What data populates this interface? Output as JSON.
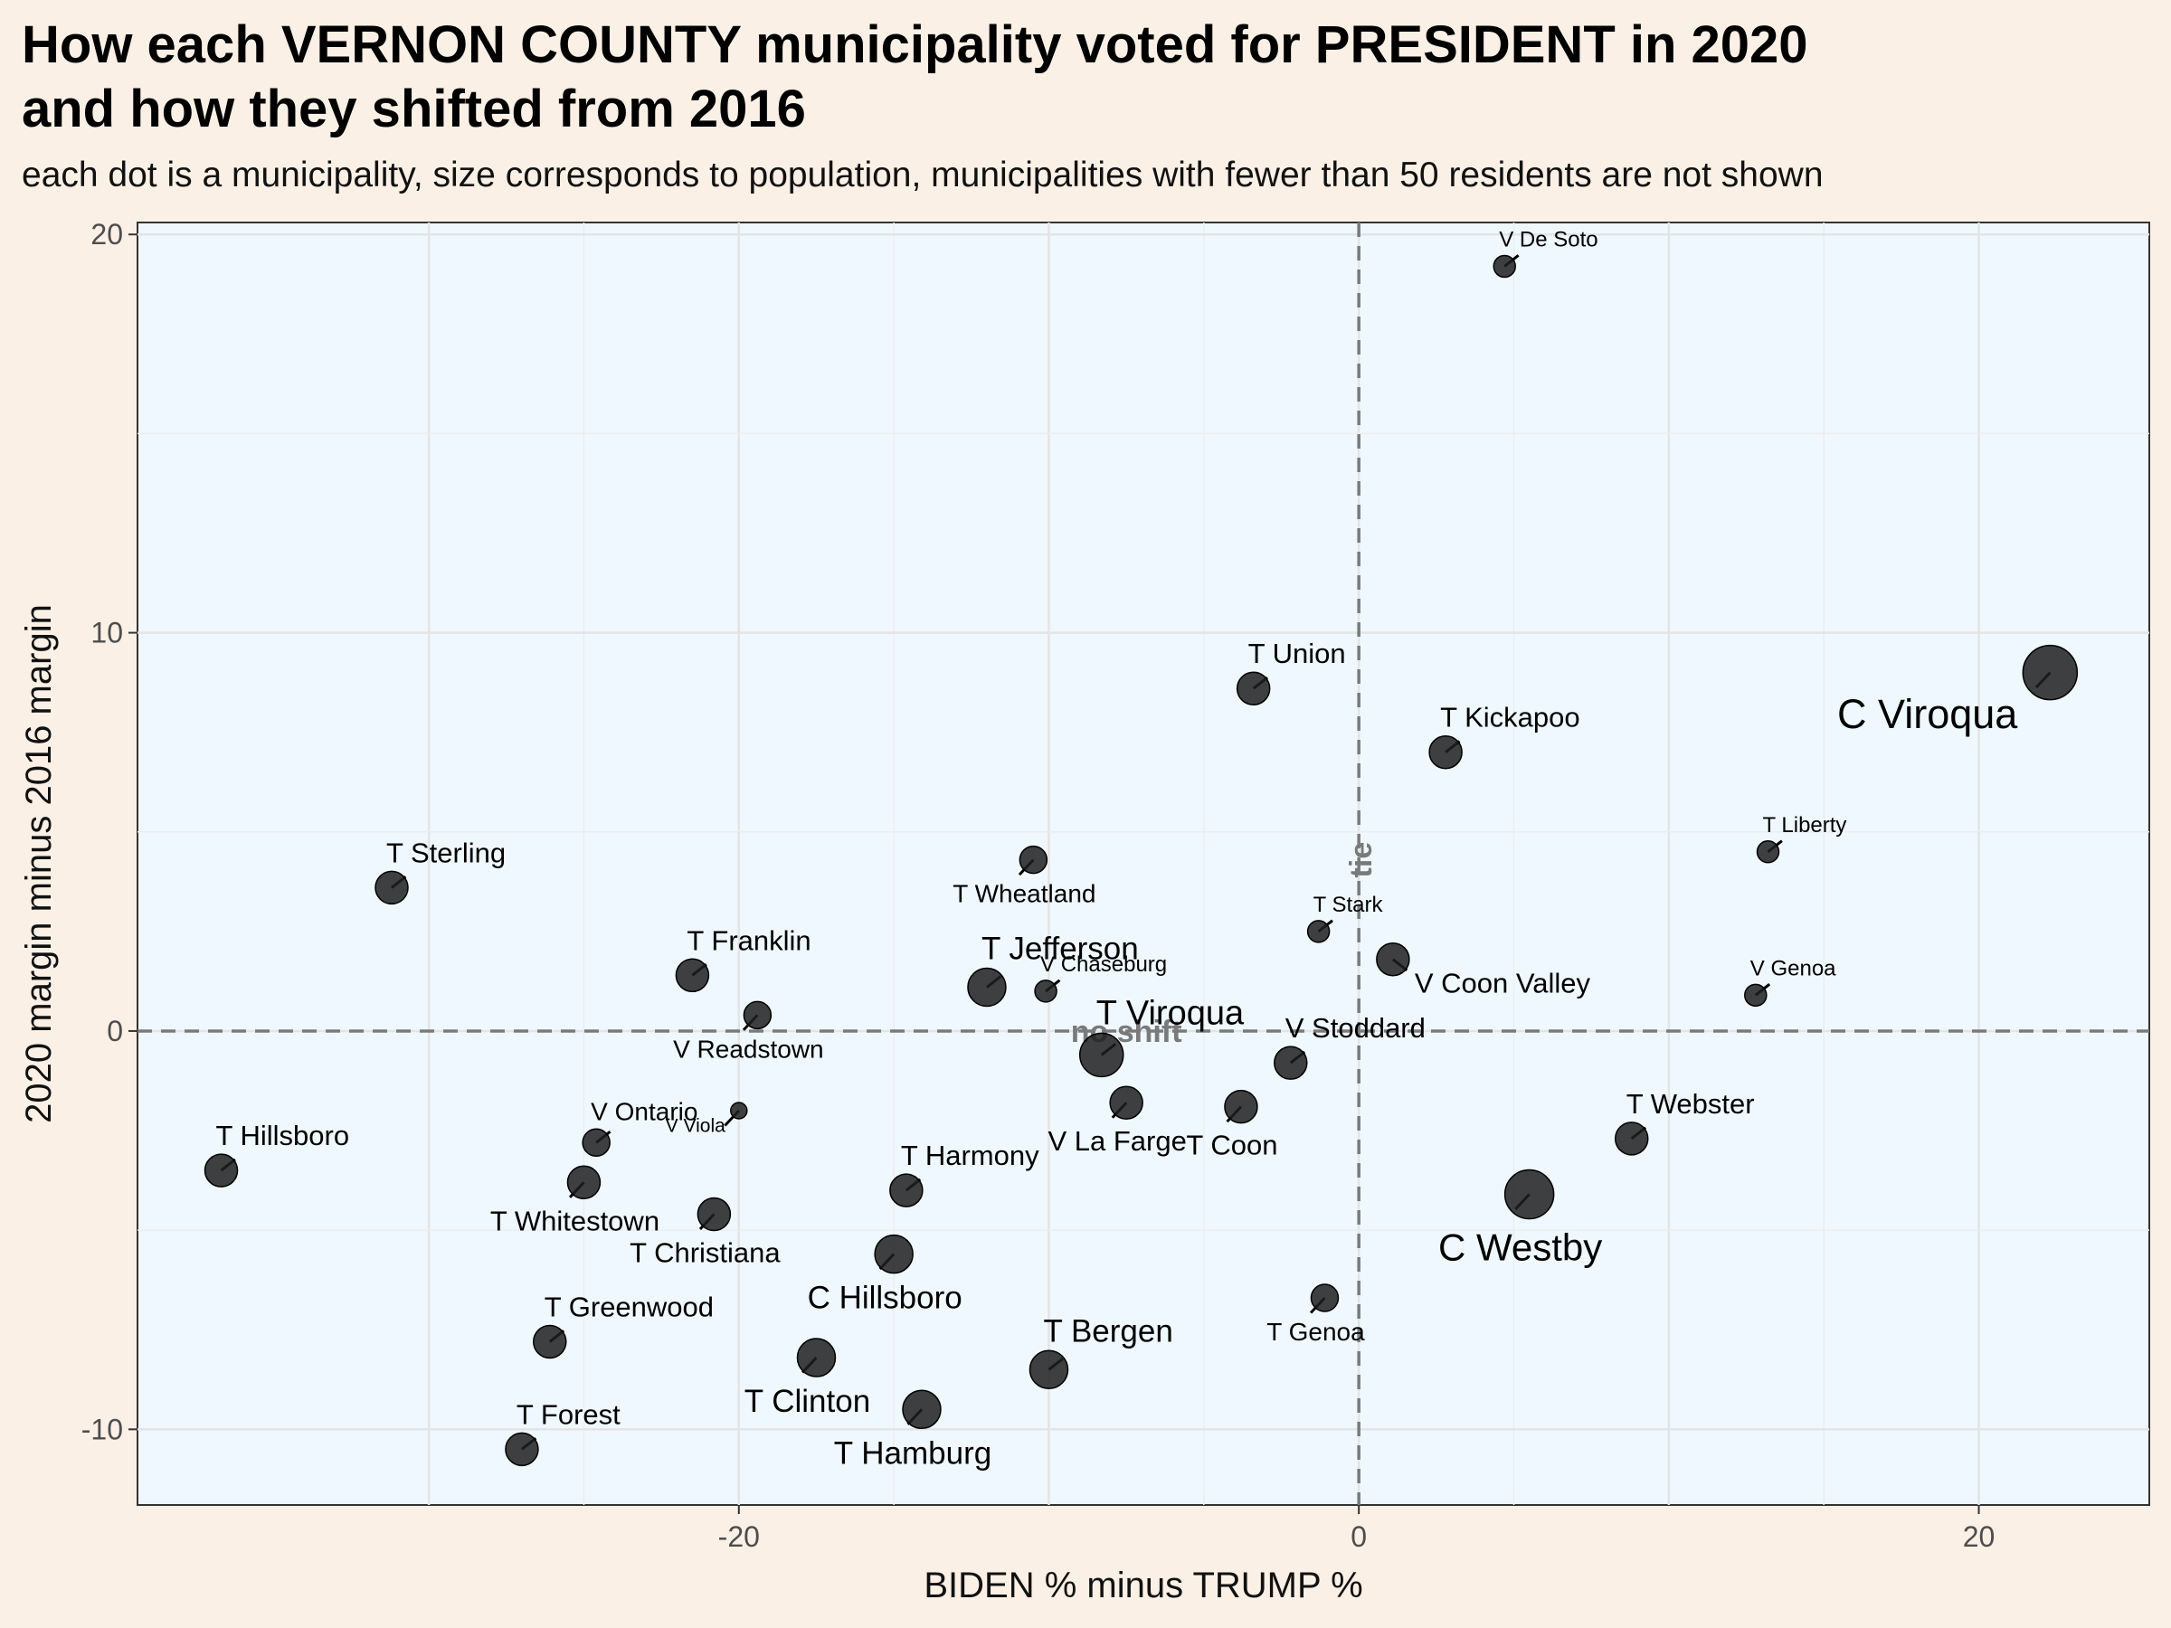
{
  "title_line1": "How each VERNON COUNTY municipality voted for PRESIDENT in 2020",
  "title_line2": "and how they shifted from 2016",
  "subtitle": "each dot is a municipality, size corresponds to population, municipalities with fewer than 50 residents are not shown",
  "chart_data": {
    "type": "scatter",
    "xlabel": "BIDEN % minus TRUMP %",
    "ylabel": "2020 margin minus 2016 margin",
    "xlim": [
      -39.4,
      25.5
    ],
    "ylim": [
      -11.9,
      20.3
    ],
    "xticks": [
      -20,
      0,
      20
    ],
    "xtick_labels": [
      "-20",
      "0",
      "20"
    ],
    "yticks": [
      -10,
      0,
      10,
      20
    ],
    "ytick_labels": [
      "-10",
      "0",
      "10",
      "20"
    ],
    "grid": true,
    "reference_lines": [
      {
        "axis": "x",
        "value": 0,
        "label": "tie"
      },
      {
        "axis": "y",
        "value": 0,
        "label": "no shift"
      }
    ],
    "colors": {
      "background": "#faf0e6",
      "panel": "#f0f8ff",
      "point": "#1f1f1f",
      "reference": "#7a7a7a"
    },
    "points": [
      {
        "name": "V De Soto",
        "x": 4.7,
        "y": 19.2,
        "size": 1,
        "anchor": "above"
      },
      {
        "name": "C Viroqua",
        "x": 22.3,
        "y": 9.0,
        "size": 4,
        "anchor": "below-left"
      },
      {
        "name": "T Union",
        "x": -3.4,
        "y": 8.6,
        "size": 2,
        "anchor": "above"
      },
      {
        "name": "T Kickapoo",
        "x": 2.8,
        "y": 7.0,
        "size": 2,
        "anchor": "above"
      },
      {
        "name": "T Liberty",
        "x": 13.2,
        "y": 4.5,
        "size": 1,
        "anchor": "above"
      },
      {
        "name": "T Wheatland",
        "x": -10.5,
        "y": 4.3,
        "size": 1.5,
        "anchor": "below"
      },
      {
        "name": "T Sterling",
        "x": -31.2,
        "y": 3.6,
        "size": 2,
        "anchor": "above"
      },
      {
        "name": "T Stark",
        "x": -1.3,
        "y": 2.5,
        "size": 1,
        "anchor": "above"
      },
      {
        "name": "V Coon Valley",
        "x": 1.1,
        "y": 1.8,
        "size": 2,
        "anchor": "below-right"
      },
      {
        "name": "T Franklin",
        "x": -21.5,
        "y": 1.4,
        "size": 2,
        "anchor": "above"
      },
      {
        "name": "T Jefferson",
        "x": -12.0,
        "y": 1.1,
        "size": 2.5,
        "anchor": "above"
      },
      {
        "name": "V Chaseburg",
        "x": -10.1,
        "y": 1.0,
        "size": 1,
        "anchor": "above"
      },
      {
        "name": "V Genoa",
        "x": 12.8,
        "y": 0.9,
        "size": 1,
        "anchor": "above"
      },
      {
        "name": "V Readstown",
        "x": -19.4,
        "y": 0.4,
        "size": 1.5,
        "anchor": "below"
      },
      {
        "name": "T Viroqua",
        "x": -8.3,
        "y": -0.6,
        "size": 3,
        "anchor": "above"
      },
      {
        "name": "V Stoddard",
        "x": -2.2,
        "y": -0.8,
        "size": 2,
        "anchor": "above"
      },
      {
        "name": "V La Farge",
        "x": -7.5,
        "y": -1.8,
        "size": 2,
        "anchor": "below"
      },
      {
        "name": "T Coon",
        "x": -3.8,
        "y": -1.9,
        "size": 2,
        "anchor": "below"
      },
      {
        "name": "V Viola",
        "x": -20.0,
        "y": -2.0,
        "size": 0.5,
        "anchor": "below-left"
      },
      {
        "name": "V Ontario",
        "x": -24.6,
        "y": -2.8,
        "size": 1.5,
        "anchor": "above"
      },
      {
        "name": "T Webster",
        "x": 8.8,
        "y": -2.7,
        "size": 2,
        "anchor": "above"
      },
      {
        "name": "T Hillsboro",
        "x": -36.7,
        "y": -3.5,
        "size": 2,
        "anchor": "above"
      },
      {
        "name": "T Whitestown",
        "x": -25.0,
        "y": -3.8,
        "size": 2,
        "anchor": "below"
      },
      {
        "name": "T Harmony",
        "x": -14.6,
        "y": -4.0,
        "size": 2,
        "anchor": "above"
      },
      {
        "name": "C Westby",
        "x": 5.5,
        "y": -4.1,
        "size": 3.5,
        "anchor": "below"
      },
      {
        "name": "T Christiana",
        "x": -20.8,
        "y": -4.6,
        "size": 2,
        "anchor": "below"
      },
      {
        "name": "C Hillsboro",
        "x": -15.0,
        "y": -5.6,
        "size": 2.5,
        "anchor": "below"
      },
      {
        "name": "T Genoa",
        "x": -1.1,
        "y": -6.7,
        "size": 1.5,
        "anchor": "below"
      },
      {
        "name": "T Greenwood",
        "x": -26.1,
        "y": -7.8,
        "size": 2,
        "anchor": "above"
      },
      {
        "name": "T Clinton",
        "x": -17.5,
        "y": -8.2,
        "size": 2.5,
        "anchor": "below"
      },
      {
        "name": "T Bergen",
        "x": -10.0,
        "y": -8.5,
        "size": 2.5,
        "anchor": "above"
      },
      {
        "name": "T Hamburg",
        "x": -14.1,
        "y": -9.5,
        "size": 2.5,
        "anchor": "below"
      },
      {
        "name": "T Forest",
        "x": -27.0,
        "y": -10.5,
        "size": 2,
        "anchor": "above"
      }
    ]
  }
}
